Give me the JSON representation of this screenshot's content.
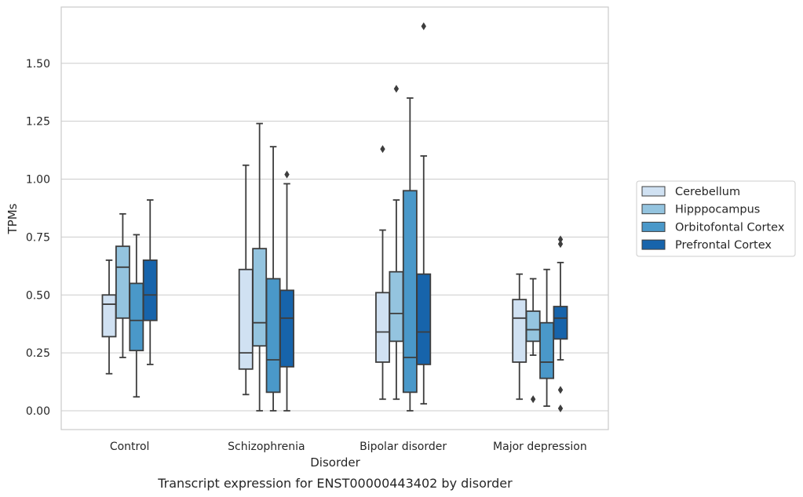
{
  "chart_data": {
    "type": "boxplot",
    "caption": "Transcript expression for ENST00000443402 by disorder",
    "xlabel": "Disorder",
    "ylabel": "TPMs",
    "ylim": [
      -0.08,
      1.75
    ],
    "yticks": [
      0.0,
      0.25,
      0.5,
      0.75,
      1.0,
      1.25,
      1.5
    ],
    "ytick_labels": [
      "0.00",
      "0.25",
      "0.50",
      "0.75",
      "1.00",
      "1.25",
      "1.50"
    ],
    "grid": "horizontal",
    "legend_position": "right",
    "categories": [
      "Control",
      "Schizophrenia",
      "Bipolar disorder",
      "Major depression"
    ],
    "series": [
      {
        "name": "Cerebellum",
        "color": "#d0e1f2",
        "boxes": [
          {
            "whislo": 0.16,
            "q1": 0.32,
            "med": 0.46,
            "q3": 0.5,
            "whishi": 0.65,
            "fliers": []
          },
          {
            "whislo": 0.07,
            "q1": 0.18,
            "med": 0.25,
            "q3": 0.61,
            "whishi": 1.06,
            "fliers": []
          },
          {
            "whislo": 0.05,
            "q1": 0.21,
            "med": 0.34,
            "q3": 0.51,
            "whishi": 0.78,
            "fliers": [
              1.13
            ]
          },
          {
            "whislo": 0.05,
            "q1": 0.21,
            "med": 0.4,
            "q3": 0.48,
            "whishi": 0.59,
            "fliers": []
          }
        ]
      },
      {
        "name": "Hipppocampus",
        "color": "#94c4df",
        "boxes": [
          {
            "whislo": 0.23,
            "q1": 0.4,
            "med": 0.62,
            "q3": 0.71,
            "whishi": 0.85,
            "fliers": []
          },
          {
            "whislo": 0.0,
            "q1": 0.28,
            "med": 0.38,
            "q3": 0.7,
            "whishi": 1.24,
            "fliers": []
          },
          {
            "whislo": 0.05,
            "q1": 0.3,
            "med": 0.42,
            "q3": 0.6,
            "whishi": 0.91,
            "fliers": [
              1.39
            ]
          },
          {
            "whislo": 0.24,
            "q1": 0.3,
            "med": 0.35,
            "q3": 0.43,
            "whishi": 0.57,
            "fliers": [
              0.05
            ]
          }
        ]
      },
      {
        "name": "Orbitofontal Cortex",
        "color": "#4a98c9",
        "boxes": [
          {
            "whislo": 0.06,
            "q1": 0.26,
            "med": 0.39,
            "q3": 0.55,
            "whishi": 0.76,
            "fliers": []
          },
          {
            "whislo": 0.0,
            "q1": 0.08,
            "med": 0.22,
            "q3": 0.57,
            "whishi": 1.14,
            "fliers": []
          },
          {
            "whislo": 0.0,
            "q1": 0.08,
            "med": 0.23,
            "q3": 0.95,
            "whishi": 1.35,
            "fliers": []
          },
          {
            "whislo": 0.02,
            "q1": 0.14,
            "med": 0.21,
            "q3": 0.38,
            "whishi": 0.61,
            "fliers": []
          }
        ]
      },
      {
        "name": "Prefrontal Cortex",
        "color": "#1764ab",
        "boxes": [
          {
            "whislo": 0.2,
            "q1": 0.39,
            "med": 0.5,
            "q3": 0.65,
            "whishi": 0.91,
            "fliers": []
          },
          {
            "whislo": 0.0,
            "q1": 0.19,
            "med": 0.4,
            "q3": 0.52,
            "whishi": 0.98,
            "fliers": [
              1.02
            ]
          },
          {
            "whislo": 0.03,
            "q1": 0.2,
            "med": 0.34,
            "q3": 0.59,
            "whishi": 1.1,
            "fliers": [
              1.66
            ]
          },
          {
            "whislo": 0.22,
            "q1": 0.31,
            "med": 0.4,
            "q3": 0.45,
            "whishi": 0.64,
            "fliers": [
              0.74,
              0.72,
              0.09,
              0.01
            ]
          }
        ]
      }
    ]
  }
}
